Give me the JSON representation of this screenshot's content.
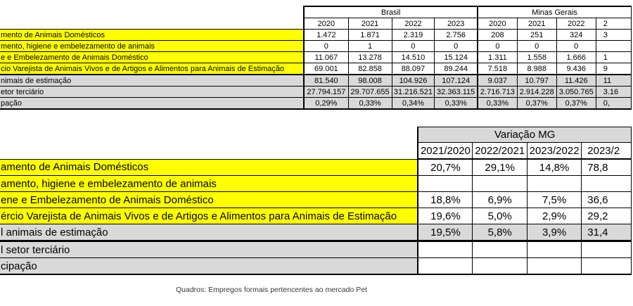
{
  "top_table": {
    "groups": [
      {
        "label": "Brasil"
      },
      {
        "label": "Minas Gerais"
      }
    ],
    "columns": {
      "brasil": [
        "2020",
        "2021",
        "2022",
        "2023"
      ],
      "mg": [
        "2020",
        "2021",
        "2022",
        "2"
      ]
    },
    "rows": [
      {
        "label": "mento de Animais Domésticos",
        "label_style": "yellow",
        "data_style": "white",
        "brasil": [
          "1.472",
          "1.871",
          "2.319",
          "2.756"
        ],
        "mg": [
          "208",
          "251",
          "324",
          "3"
        ]
      },
      {
        "label": "mento, higiene e embelezamento de animais",
        "label_style": "yellow",
        "data_style": "white",
        "brasil": [
          "0",
          "1",
          "0",
          "0"
        ],
        "mg": [
          "0",
          "0",
          "0",
          ""
        ]
      },
      {
        "label": "e e Embelezamento de Animais Doméstico",
        "label_style": "yellow",
        "data_style": "white",
        "brasil": [
          "11.067",
          "13.278",
          "14.510",
          "15.124"
        ],
        "mg": [
          "1.311",
          "1.558",
          "1.666",
          "1"
        ]
      },
      {
        "label": "cio Varejista de Animais Vivos e de Artigos e Alimentos para Animais de Estimação",
        "label_style": "yellow",
        "data_style": "white",
        "brasil": [
          "69.001",
          "82.858",
          "88.097",
          "89.244"
        ],
        "mg": [
          "7.518",
          "8.988",
          "9.436",
          "9"
        ]
      },
      {
        "label": "nimais de estimação",
        "label_style": "gray",
        "data_style": "gray",
        "brasil": [
          "81.540",
          "98.008",
          "104.926",
          "107.124"
        ],
        "mg": [
          "9.037",
          "10.797",
          "11.426",
          "11"
        ]
      },
      {
        "label": "etor terciário",
        "label_style": "gray",
        "data_style": "gray",
        "brasil": [
          "27.794.157",
          "29.707.655",
          "31.216.521",
          "32.363.115"
        ],
        "mg": [
          "2.716.713",
          "2.914.228",
          "3.050.765",
          "3.16"
        ]
      },
      {
        "label": "pação",
        "label_style": "gray",
        "data_style": "gray",
        "brasil": [
          "0,29%",
          "0,33%",
          "0,34%",
          "0,33%"
        ],
        "mg": [
          "0,33%",
          "0,37%",
          "0,37%",
          "0,"
        ]
      }
    ]
  },
  "bottom_table": {
    "header": "Variação MG",
    "columns": [
      "2021/2020",
      "2022/2021",
      "2023/2022",
      "2023/2"
    ],
    "rows": [
      {
        "label": "amento de Animais Domésticos",
        "label_style": "yellow",
        "data_style": "white",
        "values": [
          "20,7%",
          "29,1%",
          "14,8%",
          "78,8"
        ]
      },
      {
        "label": "amento, higiene e embelezamento de animais",
        "label_style": "yellow",
        "data_style": "white",
        "values": [
          "",
          "",
          "",
          ""
        ]
      },
      {
        "label": "ene e Embelezamento de Animais Doméstico",
        "label_style": "yellow",
        "data_style": "white",
        "values": [
          "18,8%",
          "6,9%",
          "7,5%",
          "36,6"
        ]
      },
      {
        "label": "ércio Varejista de Animais Vivos e de Artigos e Alimentos para Animais de Estimação",
        "label_style": "yellow",
        "data_style": "white",
        "values": [
          "19,6%",
          "5,0%",
          "2,9%",
          "29,2"
        ]
      },
      {
        "label": "l animais de estimação",
        "label_style": "gray",
        "data_style": "gray",
        "values": [
          "19,5%",
          "5,8%",
          "3,9%",
          "31,4"
        ]
      },
      {
        "label": "l setor terciário",
        "label_style": "gray",
        "data_style": "white",
        "values": [
          "",
          "",
          "",
          ""
        ]
      },
      {
        "label": "cipação",
        "label_style": "gray",
        "data_style": "white",
        "values": [
          "",
          "",
          "",
          ""
        ]
      }
    ]
  },
  "caption": "Quadros: Empregos formais pertencentes ao mercado Pet",
  "colors": {
    "highlight_yellow": "#FFFF00",
    "total_row_gray": "#D9D9D9",
    "border_black": "#000000"
  }
}
